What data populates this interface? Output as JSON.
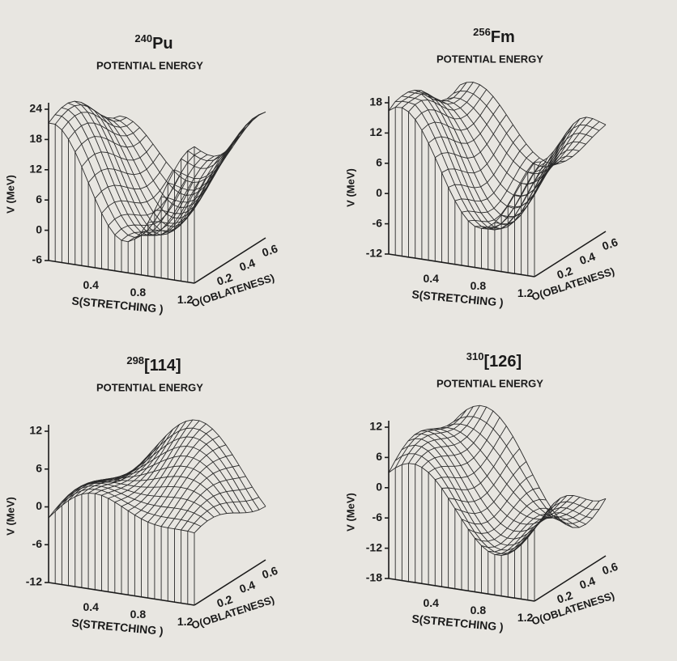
{
  "panels": [
    {
      "mass": "240",
      "element": "Pu",
      "subtitle": "POTENTIAL ENERGY",
      "y_label": "V (MeV)",
      "y_ticks": [
        "24",
        "18",
        "12",
        "6",
        "0",
        "-6"
      ],
      "s_ticks": [
        "0.4",
        "0.8",
        "1.2"
      ],
      "s_label": "S(STRETCHING )",
      "o_ticks": [
        "0.2",
        "0.4",
        "0.6"
      ],
      "o_label": "O(OBLATENESS)"
    },
    {
      "mass": "256",
      "element": "Fm",
      "subtitle": "POTENTIAL ENERGY",
      "y_label": "V (MeV)",
      "y_ticks": [
        "18",
        "12",
        "6",
        "0",
        "-6",
        "-12"
      ],
      "s_ticks": [
        "0.4",
        "0.8",
        "1.2"
      ],
      "s_label": "S(STRETCHING )",
      "o_ticks": [
        "0.2",
        "0.4",
        "0.6"
      ],
      "o_label": "O(OBLATENESS)"
    },
    {
      "mass": "298",
      "element": "[114]",
      "subtitle": "POTENTIAL ENERGY",
      "y_label": "V (MeV)",
      "y_ticks": [
        "12",
        "6",
        "0",
        "-6",
        "-12"
      ],
      "s_ticks": [
        "0.4",
        "0.8",
        "1.2"
      ],
      "s_label": "S(STRETCHING )",
      "o_ticks": [
        "0.2",
        "0.4",
        "0.6"
      ],
      "o_label": "O(OBLATENESS)"
    },
    {
      "mass": "310",
      "element": "[126]",
      "subtitle": "POTENTIAL ENERGY",
      "y_label": "V (MeV)",
      "y_ticks": [
        "12",
        "6",
        "0",
        "-6",
        "-12",
        "-18"
      ],
      "s_ticks": [
        "0.4",
        "0.8",
        "1.2"
      ],
      "s_label": "S(STRETCHING )",
      "o_ticks": [
        "0.2",
        "0.4",
        "0.6"
      ],
      "o_label": "O(OBLATENESS)"
    }
  ]
}
